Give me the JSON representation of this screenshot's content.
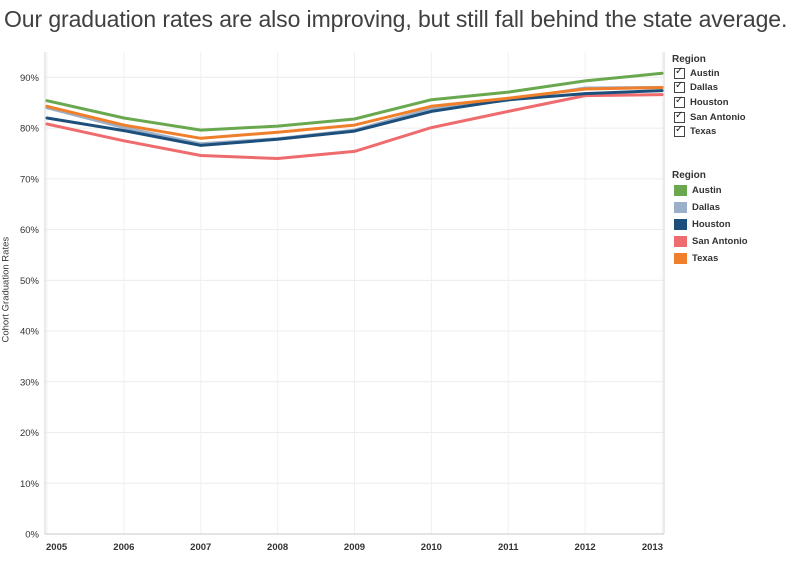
{
  "headline": "Our graduation rates are also improving, but still fall behind the state average.",
  "filter": {
    "title": "Region",
    "items": [
      {
        "label": "Austin",
        "checked": true
      },
      {
        "label": "Dallas",
        "checked": true
      },
      {
        "label": "Houston",
        "checked": true
      },
      {
        "label": "San Antonio",
        "checked": true
      },
      {
        "label": "Texas",
        "checked": true
      }
    ]
  },
  "legend": {
    "title": "Region",
    "items": [
      {
        "label": "Austin",
        "color": "#6aa84f"
      },
      {
        "label": "Dallas",
        "color": "#9bb0c8"
      },
      {
        "label": "Houston",
        "color": "#1c4f7c"
      },
      {
        "label": "San Antonio",
        "color": "#ee6b6e"
      },
      {
        "label": "Texas",
        "color": "#f07f2c"
      }
    ]
  },
  "chart_data": {
    "type": "line",
    "ylabel": "Cohort Graduation Rates",
    "xlabel": "",
    "x": [
      "2005",
      "2006",
      "2007",
      "2008",
      "2009",
      "2010",
      "2011",
      "2012",
      "2013"
    ],
    "ylim": [
      0,
      95
    ],
    "yticks": [
      0,
      10,
      20,
      30,
      40,
      50,
      60,
      70,
      80,
      90
    ],
    "ytick_labels": [
      "0%",
      "10%",
      "20%",
      "30%",
      "40%",
      "50%",
      "60%",
      "70%",
      "80%",
      "90%"
    ],
    "grid": true,
    "series": [
      {
        "name": "Austin",
        "color": "#6aa84f",
        "values": [
          85.4,
          82.0,
          79.6,
          80.4,
          81.8,
          85.6,
          87.1,
          89.3,
          90.8
        ]
      },
      {
        "name": "Dallas",
        "color": "#9bb0c8",
        "values": [
          84.0,
          80.1,
          76.9,
          77.9,
          79.6,
          83.8,
          85.5,
          87.9,
          88.0
        ]
      },
      {
        "name": "San Antonio",
        "color": "#ee6b6e",
        "values": [
          80.8,
          77.5,
          74.6,
          74.0,
          75.4,
          80.1,
          83.3,
          86.4,
          86.6
        ]
      },
      {
        "name": "Houston",
        "color": "#1c4f7c",
        "values": [
          82.0,
          79.5,
          76.6,
          77.8,
          79.4,
          83.3,
          85.6,
          86.8,
          87.4
        ]
      },
      {
        "name": "Texas",
        "color": "#f07f2c",
        "values": [
          84.3,
          80.6,
          78.0,
          79.2,
          80.6,
          84.3,
          85.9,
          87.7,
          88.0
        ]
      }
    ]
  }
}
